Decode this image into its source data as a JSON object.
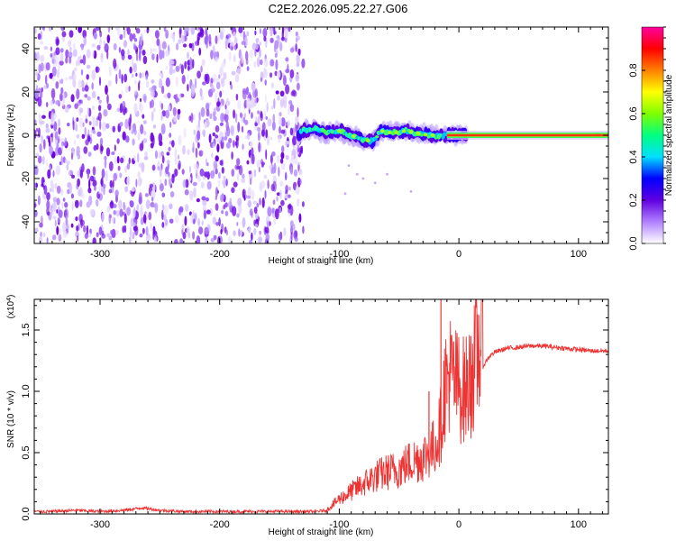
{
  "title": "C2E2.2026.095.22.27.G06",
  "chart_data": [
    {
      "type": "heatmap",
      "panel": "spectrogram",
      "xlabel": "Height of straight line (km)",
      "ylabel": "Frequency (Hz)",
      "xlim": [
        -355,
        125
      ],
      "ylim": [
        -50,
        50
      ],
      "xticks": [
        -300,
        -200,
        -100,
        0,
        100
      ],
      "xtick_labels": [
        "-300",
        "-200",
        "-100",
        "0",
        "100"
      ],
      "yticks": [
        -40,
        -20,
        0,
        20,
        40
      ],
      "ytick_labels": [
        "-40",
        "-20",
        "0",
        "20",
        "40"
      ],
      "noise_region_x": [
        -355,
        -130
      ],
      "signal_track": {
        "x": [
          -132,
          -120,
          -110,
          -100,
          -90,
          -80,
          -72,
          -65,
          -55,
          -45,
          -35,
          -25,
          -15,
          -5,
          0,
          5,
          125
        ],
        "freq_center": [
          2,
          3,
          1,
          2,
          0,
          -2,
          -3,
          2,
          1,
          2,
          1,
          0,
          0,
          0,
          1,
          0,
          0
        ]
      },
      "colorbar": {
        "label": "Normalized spectral amplitude",
        "range": [
          0,
          1
        ],
        "ticks": [
          0.0,
          0.2,
          0.4,
          0.6,
          0.8
        ],
        "tick_labels": [
          "0.0",
          "0.2",
          "0.4",
          "0.6",
          "0.8"
        ],
        "colors": [
          "#ffffff",
          "#b080ff",
          "#6000e0",
          "#0000ff",
          "#00e0ff",
          "#00ff80",
          "#80ff00",
          "#ffff00",
          "#ff8000",
          "#ff0000",
          "#ff00a0"
        ]
      }
    },
    {
      "type": "line",
      "panel": "snr",
      "xlabel": "Height of straight line (km)",
      "ylabel": "SNR (10 * v/v)",
      "scale_label": "(x10",
      "scale_exp": "4",
      "scale_close": ")",
      "xlim": [
        -355,
        125
      ],
      "ylim": [
        0,
        1.75
      ],
      "xticks": [
        -300,
        -200,
        -100,
        0,
        100
      ],
      "xtick_labels": [
        "-300",
        "-200",
        "-100",
        "0",
        "100"
      ],
      "yticks": [
        0.0,
        0.5,
        1.0,
        1.5
      ],
      "ytick_labels": [
        "0.0",
        "0.5",
        "1.0",
        "1.5"
      ],
      "series": [
        {
          "name": "SNR",
          "color": "#ee3333",
          "x": [
            -355,
            -340,
            -320,
            -300,
            -280,
            -265,
            -250,
            -230,
            -200,
            -180,
            -150,
            -120,
            -110,
            -100,
            -90,
            -80,
            -70,
            -60,
            -50,
            -40,
            -30,
            -20,
            -15,
            -12,
            -8,
            -5,
            0,
            5,
            10,
            15,
            20,
            25,
            30,
            40,
            50,
            60,
            70,
            80,
            90,
            100,
            110,
            125
          ],
          "values": [
            0.02,
            0.02,
            0.03,
            0.02,
            0.03,
            0.05,
            0.03,
            0.02,
            0.02,
            0.02,
            0.02,
            0.02,
            0.03,
            0.1,
            0.15,
            0.2,
            0.25,
            0.28,
            0.3,
            0.35,
            0.38,
            0.45,
            0.6,
            0.85,
            0.95,
            0.9,
            0.85,
            0.82,
            0.9,
            1.05,
            1.2,
            1.28,
            1.32,
            1.35,
            1.36,
            1.37,
            1.37,
            1.36,
            1.35,
            1.34,
            1.33,
            1.33
          ],
          "spikes": [
            {
              "x": -15,
              "value": 1.75
            },
            {
              "x": 10,
              "value": 1.45
            },
            {
              "x": -25,
              "value": 1.0
            },
            {
              "x": -10,
              "value": 1.3
            }
          ]
        }
      ]
    }
  ]
}
